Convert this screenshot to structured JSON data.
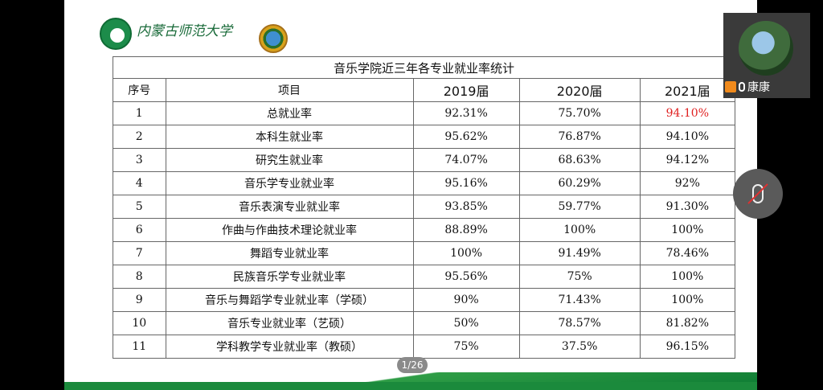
{
  "header": {
    "university_name_script": "内蒙古师范大学"
  },
  "table": {
    "title": "音乐学院近三年各专业就业率统计",
    "headers": [
      "序号",
      "项目",
      "2019届",
      "2020届",
      "2021届"
    ],
    "rows": [
      {
        "no": "1",
        "item": "总就业率",
        "y2019": "92.31%",
        "y2020": "75.70%",
        "y2021": "94.10%"
      },
      {
        "no": "2",
        "item": "本科生就业率",
        "y2019": "95.62%",
        "y2020": "76.87%",
        "y2021": "94.10%"
      },
      {
        "no": "3",
        "item": "研究生就业率",
        "y2019": "74.07%",
        "y2020": "68.63%",
        "y2021": "94.12%"
      },
      {
        "no": "4",
        "item": "音乐学专业就业率",
        "y2019": "95.16%",
        "y2020": "60.29%",
        "y2021": "92%"
      },
      {
        "no": "5",
        "item": "音乐表演专业就业率",
        "y2019": "93.85%",
        "y2020": "59.77%",
        "y2021": "91.30%"
      },
      {
        "no": "6",
        "item": "作曲与作曲技术理论就业率",
        "y2019": "88.89%",
        "y2020": "100%",
        "y2021": "100%"
      },
      {
        "no": "7",
        "item": "舞蹈专业就业率",
        "y2019": "100%",
        "y2020": "91.49%",
        "y2021": "78.46%"
      },
      {
        "no": "8",
        "item": "民族音乐学专业就业率",
        "y2019": "95.56%",
        "y2020": "75%",
        "y2021": "100%"
      },
      {
        "no": "9",
        "item": "音乐与舞蹈学专业就业率（学硕）",
        "y2019": "90%",
        "y2020": "71.43%",
        "y2021": "100%"
      },
      {
        "no": "10",
        "item": "音乐专业就业率（艺硕）",
        "y2019": "50%",
        "y2020": "78.57%",
        "y2021": "81.82%"
      },
      {
        "no": "11",
        "item": "学科教学专业就业率（教硕）",
        "y2019": "75%",
        "y2020": "37.5%",
        "y2021": "96.15%"
      }
    ]
  },
  "pager": {
    "label": "1/26"
  },
  "video": {
    "participant_name": "康康"
  },
  "colors": {
    "highlight": "#e02020",
    "brand_green": "#1b8a3c"
  }
}
